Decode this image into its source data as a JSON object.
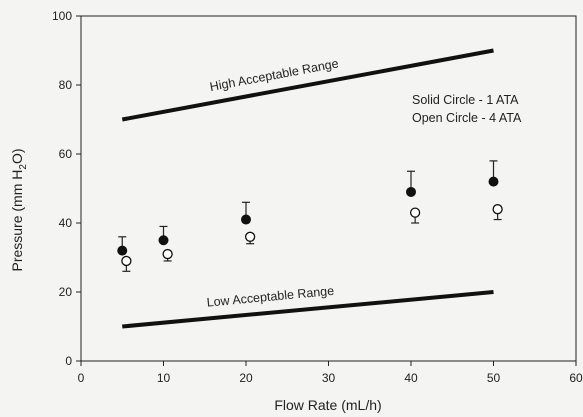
{
  "chart_data": {
    "type": "scatter",
    "xlabel": "Flow Rate (mL/h)",
    "ylabel": "Pressure (mm H2O)",
    "xlim": [
      0,
      60
    ],
    "ylim": [
      0,
      100
    ],
    "xticks": [
      0,
      10,
      20,
      30,
      40,
      50,
      60
    ],
    "yticks": [
      0,
      20,
      40,
      60,
      80,
      100
    ],
    "grid": false,
    "series": [
      {
        "name": "Solid Circle - 1 ATA",
        "marker": "filled-circle",
        "x": [
          5,
          10,
          20,
          40,
          50
        ],
        "y": [
          32,
          35,
          41,
          49,
          52
        ],
        "err_up": [
          4,
          4,
          5,
          6,
          6
        ]
      },
      {
        "name": "Open Circle - 4 ATA",
        "marker": "open-circle",
        "x": [
          5.5,
          10.5,
          20.5,
          40.5,
          50.5
        ],
        "y": [
          29,
          31,
          36,
          43,
          44
        ],
        "err_down": [
          3,
          2,
          2,
          3,
          3
        ]
      }
    ],
    "lines": [
      {
        "label": "High Acceptable Range",
        "x": [
          5,
          50
        ],
        "y": [
          70,
          90
        ]
      },
      {
        "label": "Low Acceptable Range",
        "x": [
          5,
          50
        ],
        "y": [
          10,
          20
        ]
      }
    ],
    "legend": {
      "placement": "top-right",
      "entries": [
        "Solid Circle - 1 ATA",
        "Open Circle - 4 ATA"
      ]
    }
  }
}
